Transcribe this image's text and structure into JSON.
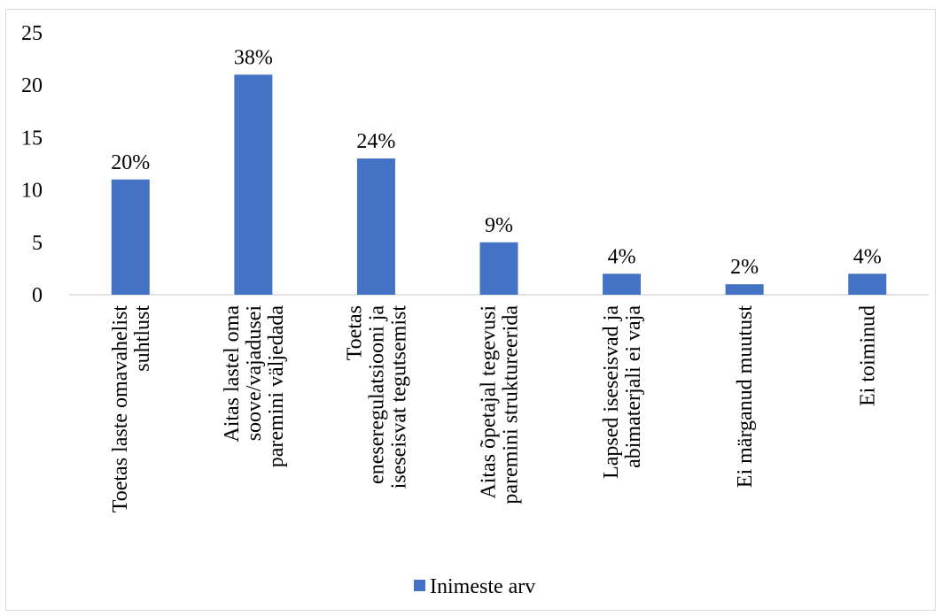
{
  "chart_data": {
    "type": "bar",
    "categories": [
      [
        "Toetas laste omavahelist",
        "suhtlust"
      ],
      [
        "Aitas lastel oma",
        "soove/vajadusei",
        "paremini väljedada"
      ],
      [
        "Toetas",
        "eneseregulatsiooni ja",
        "iseseisvat tegutsemist"
      ],
      [
        "Aitas õpetajal tegevusi",
        "paremini struktureerida"
      ],
      [
        "Lapsed iseseisvad ja",
        "abimaterjali ei vaja"
      ],
      [
        "Ei märganud muutust"
      ],
      [
        "Ei toiminud"
      ]
    ],
    "series": [
      {
        "name": "Inimeste arv",
        "values": [
          11,
          21,
          13,
          5,
          2,
          1,
          2
        ],
        "data_labels": [
          "20%",
          "38%",
          "24%",
          "9%",
          "4%",
          "2%",
          "4%"
        ]
      }
    ],
    "yticks": [
      "0",
      "5",
      "10",
      "15",
      "20",
      "25"
    ],
    "ylim": [
      0,
      25
    ],
    "bar_color": "#4472C4",
    "axis_color": "#d9d9d9",
    "legend_position": "bottom",
    "grid": false
  }
}
